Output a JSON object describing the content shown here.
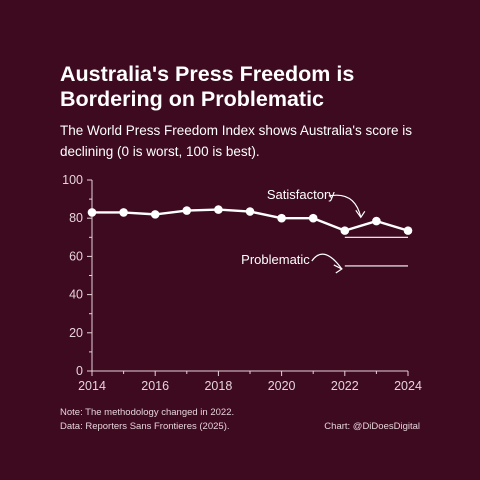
{
  "title_lines": [
    "Australia's Press Freedom is",
    "Bordering on Problematic"
  ],
  "subtitle_lines": [
    "The World Press Freedom Index shows Australia's score is",
    "declining (0 is worst, 100 is best)."
  ],
  "notes": {
    "methodology": "Note: The methodology changed in 2022.",
    "source": "Data: Reporters Sans Frontieres (2025).",
    "credit": "Chart: @DiDoesDigital"
  },
  "colors": {
    "background": "#3d0a1f",
    "line": "#ffffff",
    "axis": "#e6d3da"
  },
  "chart_data": {
    "type": "line",
    "x": [
      2014,
      2015,
      2016,
      2017,
      2018,
      2019,
      2020,
      2021,
      2022,
      2023,
      2024
    ],
    "series": [
      {
        "values": [
          83,
          83,
          82,
          84,
          84.5,
          83.5,
          80,
          80,
          73.5,
          78.5,
          73.5
        ]
      }
    ],
    "xlim": [
      2014,
      2024
    ],
    "ylim": [
      0,
      100
    ],
    "xticks": [
      "2014",
      "2016",
      "2018",
      "2020",
      "2022",
      "2024"
    ],
    "yticks": [
      "0",
      "20",
      "40",
      "60",
      "80",
      "100"
    ],
    "grid": false,
    "thresholds": [
      {
        "label": "Satisfactory",
        "value": 70,
        "x_range": [
          2022,
          2024
        ]
      },
      {
        "label": "Problematic",
        "value": 55,
        "x_range": [
          2022,
          2024
        ]
      }
    ]
  }
}
